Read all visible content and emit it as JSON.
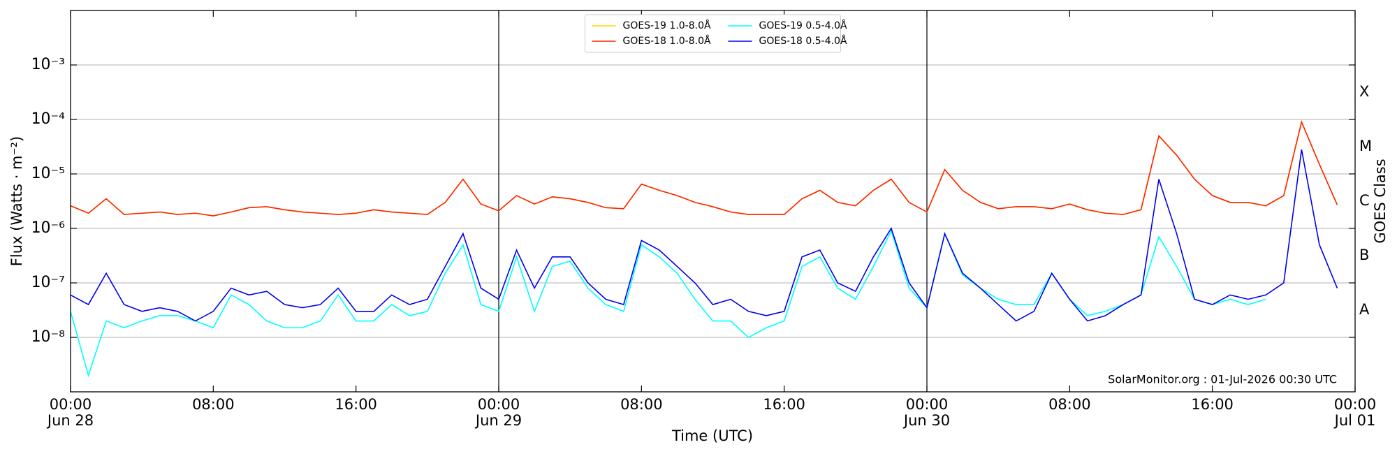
{
  "chart_data": {
    "type": "line",
    "yscale": "log",
    "xlabel": "Time (UTC)",
    "ylabel": "Flux (Watts · m⁻²)",
    "y2label": "GOES Class",
    "annotation": "SolarMonitor.org : 01-Jul-2026 00:30 UTC",
    "legend": "upper center",
    "grid": true,
    "xlim": [
      "Jun 28 00:00",
      "Jul 01 00:00"
    ],
    "xticks": [
      {
        "value": "Jun 28 00:00",
        "label": "00:00\nJun 28"
      },
      {
        "value": "Jun 28 08:00",
        "label": "08:00"
      },
      {
        "value": "Jun 28 16:00",
        "label": "16:00"
      },
      {
        "value": "Jun 29 00:00",
        "label": "00:00\nJun 29"
      },
      {
        "value": "Jun 29 08:00",
        "label": "08:00"
      },
      {
        "value": "Jun 29 16:00",
        "label": "16:00"
      },
      {
        "value": "Jun 30 00:00",
        "label": "00:00\nJun 30"
      },
      {
        "value": "Jun 30 08:00",
        "label": "08:00"
      },
      {
        "value": "Jun 30 16:00",
        "label": "16:00"
      },
      {
        "value": "Jul 01 00:00",
        "label": "00:00\nJul 01"
      }
    ],
    "vlines": [
      "Jun 29 00:00",
      "Jun 30 00:00"
    ],
    "ylim": [
      1e-09,
      0.01
    ],
    "yticks": [
      {
        "value": 1e-08,
        "label": "10⁻⁸"
      },
      {
        "value": 1e-07,
        "label": "10⁻⁷"
      },
      {
        "value": 1e-06,
        "label": "10⁻⁶"
      },
      {
        "value": 1e-05,
        "label": "10⁻⁵"
      },
      {
        "value": 0.0001,
        "label": "10⁻⁴"
      },
      {
        "value": 0.001,
        "label": "10⁻³"
      }
    ],
    "y2lim": [
      1e-09,
      0.01
    ],
    "y2ticks": [
      {
        "value": 3.16e-08,
        "label": "A"
      },
      {
        "value": 3.16e-07,
        "label": "B"
      },
      {
        "value": 3.16e-06,
        "label": "C"
      },
      {
        "value": 3.16e-05,
        "label": "M"
      },
      {
        "value": 0.000316,
        "label": "X"
      }
    ],
    "x": [
      "Jun 28 00:00",
      "Jun 28 01:00",
      "Jun 28 02:00",
      "Jun 28 03:00",
      "Jun 28 04:00",
      "Jun 28 05:00",
      "Jun 28 06:00",
      "Jun 28 07:00",
      "Jun 28 08:00",
      "Jun 28 09:00",
      "Jun 28 10:00",
      "Jun 28 11:00",
      "Jun 28 12:00",
      "Jun 28 13:00",
      "Jun 28 14:00",
      "Jun 28 15:00",
      "Jun 28 16:00",
      "Jun 28 17:00",
      "Jun 28 18:00",
      "Jun 28 19:00",
      "Jun 28 20:00",
      "Jun 28 21:00",
      "Jun 28 22:00",
      "Jun 28 23:00",
      "Jun 29 00:00",
      "Jun 29 01:00",
      "Jun 29 02:00",
      "Jun 29 03:00",
      "Jun 29 04:00",
      "Jun 29 05:00",
      "Jun 29 06:00",
      "Jun 29 07:00",
      "Jun 29 08:00",
      "Jun 29 09:00",
      "Jun 29 10:00",
      "Jun 29 11:00",
      "Jun 29 12:00",
      "Jun 29 13:00",
      "Jun 29 14:00",
      "Jun 29 15:00",
      "Jun 29 16:00",
      "Jun 29 17:00",
      "Jun 29 18:00",
      "Jun 29 19:00",
      "Jun 29 20:00",
      "Jun 29 21:00",
      "Jun 29 22:00",
      "Jun 29 23:00",
      "Jun 30 00:00",
      "Jun 30 01:00",
      "Jun 30 02:00",
      "Jun 30 03:00",
      "Jun 30 04:00",
      "Jun 30 05:00",
      "Jun 30 06:00",
      "Jun 30 07:00",
      "Jun 30 08:00",
      "Jun 30 09:00",
      "Jun 30 10:00",
      "Jun 30 11:00",
      "Jun 30 12:00",
      "Jun 30 13:00",
      "Jun 30 14:00",
      "Jun 30 15:00",
      "Jun 30 16:00",
      "Jun 30 17:00",
      "Jun 30 18:00",
      "Jun 30 19:00",
      "Jun 30 20:00",
      "Jun 30 21:00",
      "Jun 30 22:00",
      "Jun 30 23:00"
    ],
    "series": [
      {
        "name": "GOES-19 1.0-8.0Å",
        "color": "#ffd700",
        "values": [
          2.6e-06,
          1.9e-06,
          3.5e-06,
          1.8e-06,
          1.9e-06,
          2e-06,
          1.8e-06,
          1.9e-06,
          1.7e-06,
          2e-06,
          2.4e-06,
          2.5e-06,
          2.2e-06,
          2e-06,
          1.9e-06,
          1.8e-06,
          1.9e-06,
          2.2e-06,
          2e-06,
          1.9e-06,
          1.8e-06,
          3e-06,
          8e-06,
          2.8e-06,
          2.1e-06,
          4e-06,
          2.8e-06,
          3.8e-06,
          3.5e-06,
          3e-06,
          2.4e-06,
          2.3e-06,
          6.5e-06,
          5e-06,
          4e-06,
          3e-06,
          2.5e-06,
          2e-06,
          1.8e-06,
          1.8e-06,
          1.8e-06,
          3.5e-06,
          5e-06,
          3e-06,
          2.6e-06,
          5e-06,
          8e-06,
          3e-06,
          2e-06,
          1.2e-05,
          5e-06,
          3e-06,
          2.3e-06,
          2.5e-06,
          2.5e-06,
          2.3e-06,
          2.8e-06,
          2.2e-06,
          1.9e-06,
          1.8e-06,
          2.2e-06,
          5e-05,
          2.2e-05,
          8e-06,
          4e-06,
          3e-06,
          3e-06,
          2.6e-06,
          4e-06,
          9e-05,
          1.5e-05,
          2.7e-06
        ]
      },
      {
        "name": "GOES-18 1.0-8.0Å",
        "color": "#ff2200",
        "values": [
          2.6e-06,
          1.9e-06,
          3.5e-06,
          1.8e-06,
          1.9e-06,
          2e-06,
          1.8e-06,
          1.9e-06,
          1.7e-06,
          2e-06,
          2.4e-06,
          2.5e-06,
          2.2e-06,
          2e-06,
          1.9e-06,
          1.8e-06,
          1.9e-06,
          2.2e-06,
          2e-06,
          1.9e-06,
          1.8e-06,
          3e-06,
          8e-06,
          2.8e-06,
          2.1e-06,
          4e-06,
          2.8e-06,
          3.8e-06,
          3.5e-06,
          3e-06,
          2.4e-06,
          2.3e-06,
          6.5e-06,
          5e-06,
          4e-06,
          3e-06,
          2.5e-06,
          2e-06,
          1.8e-06,
          1.8e-06,
          1.8e-06,
          3.5e-06,
          5e-06,
          3e-06,
          2.6e-06,
          5e-06,
          8e-06,
          3e-06,
          2e-06,
          1.2e-05,
          5e-06,
          3e-06,
          2.3e-06,
          2.5e-06,
          2.5e-06,
          2.3e-06,
          2.8e-06,
          2.2e-06,
          1.9e-06,
          1.8e-06,
          2.2e-06,
          5e-05,
          2.2e-05,
          8e-06,
          4e-06,
          3e-06,
          3e-06,
          2.6e-06,
          4e-06,
          9e-05,
          1.5e-05,
          2.7e-06
        ]
      },
      {
        "name": "GOES-19 0.5-4.0Å",
        "color": "#00ffff",
        "values": [
          3e-08,
          2e-09,
          2e-08,
          1.5e-08,
          2e-08,
          2.5e-08,
          2.5e-08,
          2e-08,
          1.5e-08,
          6e-08,
          4e-08,
          2e-08,
          1.5e-08,
          1.5e-08,
          2e-08,
          6e-08,
          2e-08,
          2e-08,
          4e-08,
          2.5e-08,
          3e-08,
          1.5e-07,
          5e-07,
          4e-08,
          3e-08,
          3e-07,
          3e-08,
          2e-07,
          2.5e-07,
          8e-08,
          4e-08,
          3e-08,
          5e-07,
          3e-07,
          1.5e-07,
          5e-08,
          2e-08,
          2e-08,
          1e-08,
          1.5e-08,
          2e-08,
          2e-07,
          3e-07,
          8e-08,
          5e-08,
          2e-07,
          9e-07,
          8e-08,
          3.5e-08,
          8e-07,
          1.4e-07,
          8e-08,
          5e-08,
          4e-08,
          4e-08,
          1.5e-07,
          5e-08,
          2.5e-08,
          3e-08,
          4e-08,
          6e-08,
          7e-07,
          2e-07,
          5e-08,
          4e-08,
          5e-08,
          4e-08,
          5e-08,
          null,
          null,
          null,
          null
        ]
      },
      {
        "name": "GOES-18 0.5-4.0Å",
        "color": "#0000ee",
        "values": [
          6e-08,
          4e-08,
          1.5e-07,
          4e-08,
          3e-08,
          3.5e-08,
          3e-08,
          2e-08,
          3e-08,
          8e-08,
          6e-08,
          7e-08,
          4e-08,
          3.5e-08,
          4e-08,
          8e-08,
          3e-08,
          3e-08,
          6e-08,
          4e-08,
          5e-08,
          2e-07,
          8e-07,
          8e-08,
          5e-08,
          4e-07,
          8e-08,
          3e-07,
          3e-07,
          1e-07,
          5e-08,
          4e-08,
          6e-07,
          4e-07,
          2e-07,
          1e-07,
          4e-08,
          5e-08,
          3e-08,
          2.5e-08,
          3e-08,
          3e-07,
          4e-07,
          1e-07,
          7e-08,
          3e-07,
          1e-06,
          1e-07,
          3.5e-08,
          8e-07,
          1.5e-07,
          8e-08,
          4e-08,
          2e-08,
          3e-08,
          1.5e-07,
          5e-08,
          2e-08,
          2.5e-08,
          4e-08,
          6e-08,
          8e-06,
          8e-07,
          5e-08,
          4e-08,
          6e-08,
          5e-08,
          6e-08,
          1e-07,
          2.8e-05,
          5e-07,
          8e-08
        ]
      }
    ]
  }
}
